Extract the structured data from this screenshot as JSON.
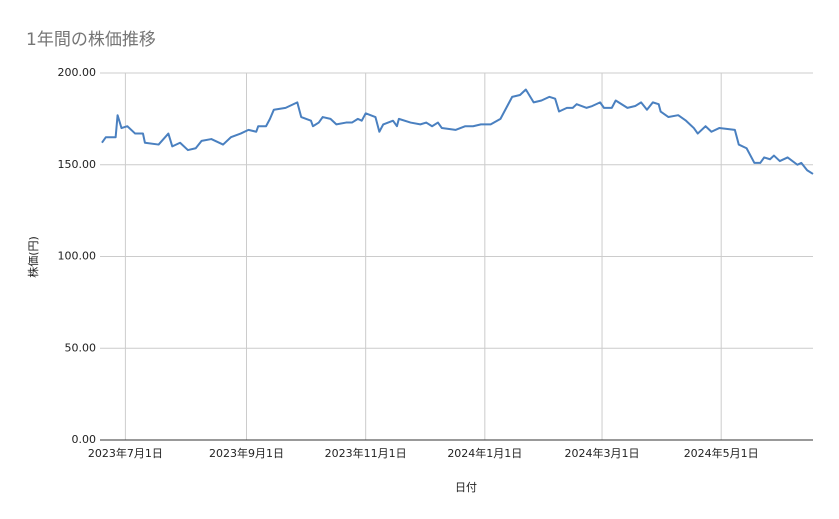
{
  "chart_data": {
    "type": "line",
    "title": "1年間の株価推移",
    "x_label": "日付",
    "y_label": "株価(円)",
    "x": [
      "2023-06-19",
      "2023-06-21",
      "2023-06-26",
      "2023-06-27",
      "2023-06-29",
      "2023-07-02",
      "2023-07-06",
      "2023-07-10",
      "2023-07-11",
      "2023-07-18",
      "2023-07-23",
      "2023-07-25",
      "2023-07-29",
      "2023-08-02",
      "2023-08-06",
      "2023-08-09",
      "2023-08-14",
      "2023-08-20",
      "2023-08-24",
      "2023-08-29",
      "2023-09-02",
      "2023-09-06",
      "2023-09-07",
      "2023-09-11",
      "2023-09-13",
      "2023-09-15",
      "2023-09-21",
      "2023-09-27",
      "2023-09-29",
      "2023-10-04",
      "2023-10-05",
      "2023-10-08",
      "2023-10-10",
      "2023-10-14",
      "2023-10-17",
      "2023-10-22",
      "2023-10-25",
      "2023-10-28",
      "2023-10-30",
      "2023-11-01",
      "2023-11-06",
      "2023-11-08",
      "2023-11-10",
      "2023-11-15",
      "2023-11-17",
      "2023-11-18",
      "2023-11-24",
      "2023-11-29",
      "2023-12-02",
      "2023-12-05",
      "2023-12-08",
      "2023-12-10",
      "2023-12-17",
      "2023-12-22",
      "2023-12-26",
      "2023-12-30",
      "2024-01-04",
      "2024-01-09",
      "2024-01-12",
      "2024-01-15",
      "2024-01-19",
      "2024-01-22",
      "2024-01-26",
      "2024-01-30",
      "2024-02-03",
      "2024-02-06",
      "2024-02-08",
      "2024-02-12",
      "2024-02-15",
      "2024-02-17",
      "2024-02-22",
      "2024-02-25",
      "2024-02-29",
      "2024-03-02",
      "2024-03-06",
      "2024-03-08",
      "2024-03-14",
      "2024-03-18",
      "2024-03-21",
      "2024-03-24",
      "2024-03-27",
      "2024-03-30",
      "2024-03-31",
      "2024-04-04",
      "2024-04-09",
      "2024-04-13",
      "2024-04-17",
      "2024-04-19",
      "2024-04-23",
      "2024-04-26",
      "2024-04-30",
      "2024-05-08",
      "2024-05-10",
      "2024-05-14",
      "2024-05-18",
      "2024-05-21",
      "2024-05-23",
      "2024-05-26",
      "2024-05-28",
      "2024-05-31",
      "2024-06-04",
      "2024-06-09",
      "2024-06-11",
      "2024-06-14",
      "2024-06-17"
    ],
    "series": [
      {
        "name": "株価",
        "color": "#4a80c0",
        "values": [
          162,
          165,
          165,
          177,
          170,
          171,
          167,
          167,
          162,
          161,
          167,
          160,
          162,
          158,
          159,
          163,
          164,
          161,
          165,
          167,
          169,
          168,
          171,
          171,
          175,
          180,
          181,
          184,
          176,
          174,
          171,
          173,
          176,
          175,
          172,
          173,
          173,
          175,
          174,
          178,
          176,
          168,
          172,
          174,
          171,
          175,
          173,
          172,
          173,
          171,
          173,
          170,
          169,
          171,
          171,
          172,
          172,
          175,
          181,
          187,
          188,
          191,
          184,
          185,
          187,
          186,
          179,
          181,
          181,
          183,
          181,
          182,
          184,
          181,
          181,
          185,
          181,
          182,
          184,
          180,
          184,
          183,
          179,
          176,
          177,
          174,
          170,
          167,
          171,
          168,
          170,
          169,
          161,
          159,
          151,
          151,
          154,
          153,
          155,
          152,
          154,
          150,
          151,
          147,
          145
        ]
      }
    ],
    "xlim": [
      "2023-06-18",
      "2024-06-17"
    ],
    "xticks": [
      {
        "value": "2023-07-01",
        "label": "2023年7月1日"
      },
      {
        "value": "2023-09-01",
        "label": "2023年9月1日"
      },
      {
        "value": "2023-11-01",
        "label": "2023年11月1日"
      },
      {
        "value": "2024-01-01",
        "label": "2024年1月1日"
      },
      {
        "value": "2024-03-01",
        "label": "2024年3月1日"
      },
      {
        "value": "2024-05-01",
        "label": "2024年5月1日"
      }
    ],
    "ylim": [
      0,
      200
    ],
    "yticks": [
      {
        "value": 0,
        "label": "0.00"
      },
      {
        "value": 50,
        "label": "50.00"
      },
      {
        "value": 100,
        "label": "100.00"
      },
      {
        "value": 150,
        "label": "150.00"
      },
      {
        "value": 200,
        "label": "200.00"
      }
    ],
    "grid": true
  }
}
